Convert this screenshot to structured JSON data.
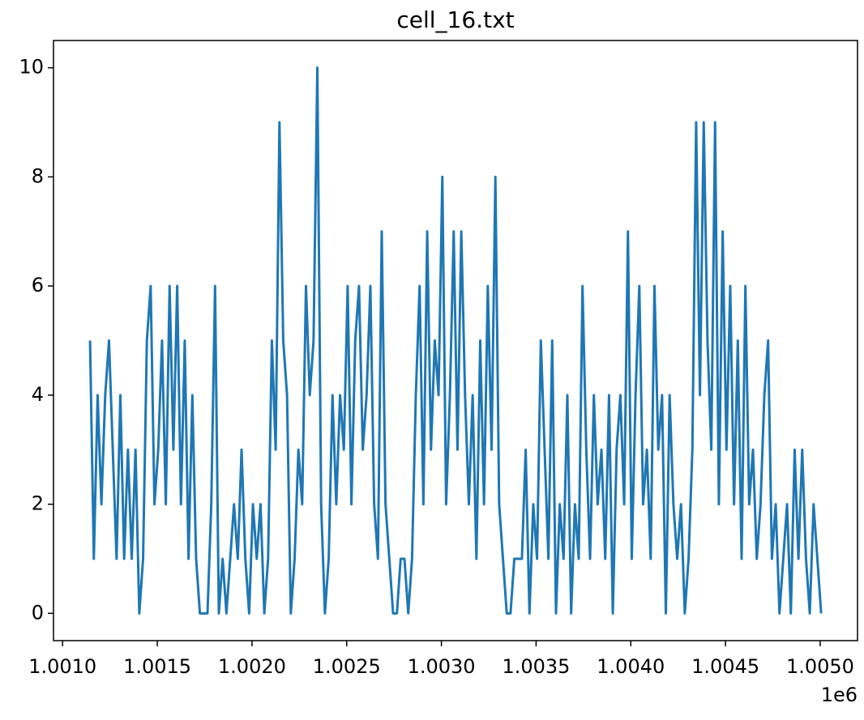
{
  "chart_data": {
    "type": "line",
    "title": "cell_16.txt",
    "x_offset_label": "1e6",
    "xlim": [
      1000952,
      1005197
    ],
    "ylim": [
      -0.5,
      10.5
    ],
    "xticks": [
      {
        "value": 1001000,
        "label": "1.0010"
      },
      {
        "value": 1001500,
        "label": "1.0015"
      },
      {
        "value": 1002000,
        "label": "1.0020"
      },
      {
        "value": 1002500,
        "label": "1.0025"
      },
      {
        "value": 1003000,
        "label": "1.0030"
      },
      {
        "value": 1003500,
        "label": "1.0035"
      },
      {
        "value": 1004000,
        "label": "1.0040"
      },
      {
        "value": 1004500,
        "label": "1.0045"
      },
      {
        "value": 1005000,
        "label": "1.0050"
      }
    ],
    "yticks": [
      0,
      2,
      4,
      6,
      8,
      10
    ],
    "x": [
      1001145,
      1001165,
      1001185,
      1001205,
      1001225,
      1001245,
      1001265,
      1001285,
      1001305,
      1001325,
      1001345,
      1001365,
      1001385,
      1001405,
      1001425,
      1001445,
      1001465,
      1001485,
      1001505,
      1001525,
      1001545,
      1001565,
      1001585,
      1001605,
      1001625,
      1001645,
      1001665,
      1001685,
      1001705,
      1001725,
      1001745,
      1001765,
      1001785,
      1001805,
      1001825,
      1001845,
      1001865,
      1001885,
      1001905,
      1001925,
      1001945,
      1001965,
      1001985,
      1002005,
      1002025,
      1002045,
      1002065,
      1002085,
      1002105,
      1002125,
      1002145,
      1002165,
      1002185,
      1002205,
      1002225,
      1002245,
      1002265,
      1002285,
      1002305,
      1002325,
      1002345,
      1002365,
      1002385,
      1002405,
      1002425,
      1002445,
      1002465,
      1002485,
      1002505,
      1002525,
      1002545,
      1002565,
      1002585,
      1002605,
      1002625,
      1002645,
      1002665,
      1002685,
      1002705,
      1002725,
      1002745,
      1002765,
      1002785,
      1002805,
      1002825,
      1002845,
      1002865,
      1002885,
      1002905,
      1002925,
      1002945,
      1002965,
      1002985,
      1003005,
      1003025,
      1003045,
      1003065,
      1003085,
      1003105,
      1003125,
      1003145,
      1003165,
      1003185,
      1003205,
      1003225,
      1003245,
      1003265,
      1003285,
      1003305,
      1003325,
      1003345,
      1003365,
      1003385,
      1003405,
      1003425,
      1003445,
      1003465,
      1003485,
      1003505,
      1003525,
      1003545,
      1003565,
      1003585,
      1003605,
      1003625,
      1003645,
      1003665,
      1003685,
      1003705,
      1003725,
      1003745,
      1003765,
      1003785,
      1003805,
      1003825,
      1003845,
      1003865,
      1003885,
      1003905,
      1003925,
      1003945,
      1003965,
      1003985,
      1004005,
      1004025,
      1004045,
      1004065,
      1004085,
      1004105,
      1004125,
      1004145,
      1004165,
      1004185,
      1004205,
      1004225,
      1004245,
      1004265,
      1004285,
      1004305,
      1004325,
      1004345,
      1004365,
      1004385,
      1004405,
      1004425,
      1004445,
      1004465,
      1004485,
      1004505,
      1004525,
      1004545,
      1004565,
      1004585,
      1004605,
      1004625,
      1004645,
      1004665,
      1004685,
      1004705,
      1004725,
      1004745,
      1004765,
      1004785,
      1004805,
      1004825,
      1004845,
      1004865,
      1004885,
      1004905,
      1004925,
      1004945,
      1004965,
      1004985,
      1005005
    ],
    "series": [
      {
        "color": "#1f77b4",
        "values": [
          5,
          1,
          4,
          2,
          4,
          5,
          3,
          1,
          4,
          1,
          3,
          1,
          3,
          0,
          1,
          5,
          6,
          2,
          3,
          5,
          2,
          6,
          3,
          6,
          2,
          5,
          1,
          4,
          1,
          0,
          0,
          0,
          2,
          6,
          0,
          1,
          0,
          1,
          2,
          1,
          3,
          1,
          0,
          2,
          1,
          2,
          0,
          1,
          5,
          3,
          9,
          5,
          4,
          0,
          1,
          3,
          2,
          6,
          4,
          5,
          10,
          2,
          0,
          1,
          4,
          2,
          4,
          3,
          6,
          2,
          5,
          6,
          3,
          4,
          6,
          2,
          1,
          7,
          2,
          1,
          0,
          0,
          1,
          1,
          0,
          1,
          4,
          6,
          2,
          7,
          3,
          5,
          4,
          8,
          2,
          4,
          7,
          3,
          7,
          4,
          2,
          4,
          1,
          5,
          2,
          6,
          3,
          8,
          2,
          1,
          0,
          0,
          1,
          1,
          1,
          3,
          0,
          2,
          1,
          5,
          3,
          1,
          5,
          0,
          2,
          1,
          4,
          0,
          2,
          1,
          6,
          3,
          1,
          4,
          2,
          3,
          1,
          4,
          0,
          3,
          4,
          2,
          7,
          1,
          4,
          6,
          2,
          3,
          1,
          6,
          3,
          4,
          0,
          4,
          2,
          1,
          2,
          0,
          1,
          3,
          9,
          4,
          9,
          5,
          3,
          9,
          2,
          7,
          3,
          6,
          2,
          5,
          1,
          6,
          2,
          3,
          1,
          2,
          4,
          5,
          1,
          2,
          0,
          1,
          2,
          0,
          3,
          1,
          3,
          1,
          0,
          2,
          1,
          0
        ]
      }
    ]
  }
}
